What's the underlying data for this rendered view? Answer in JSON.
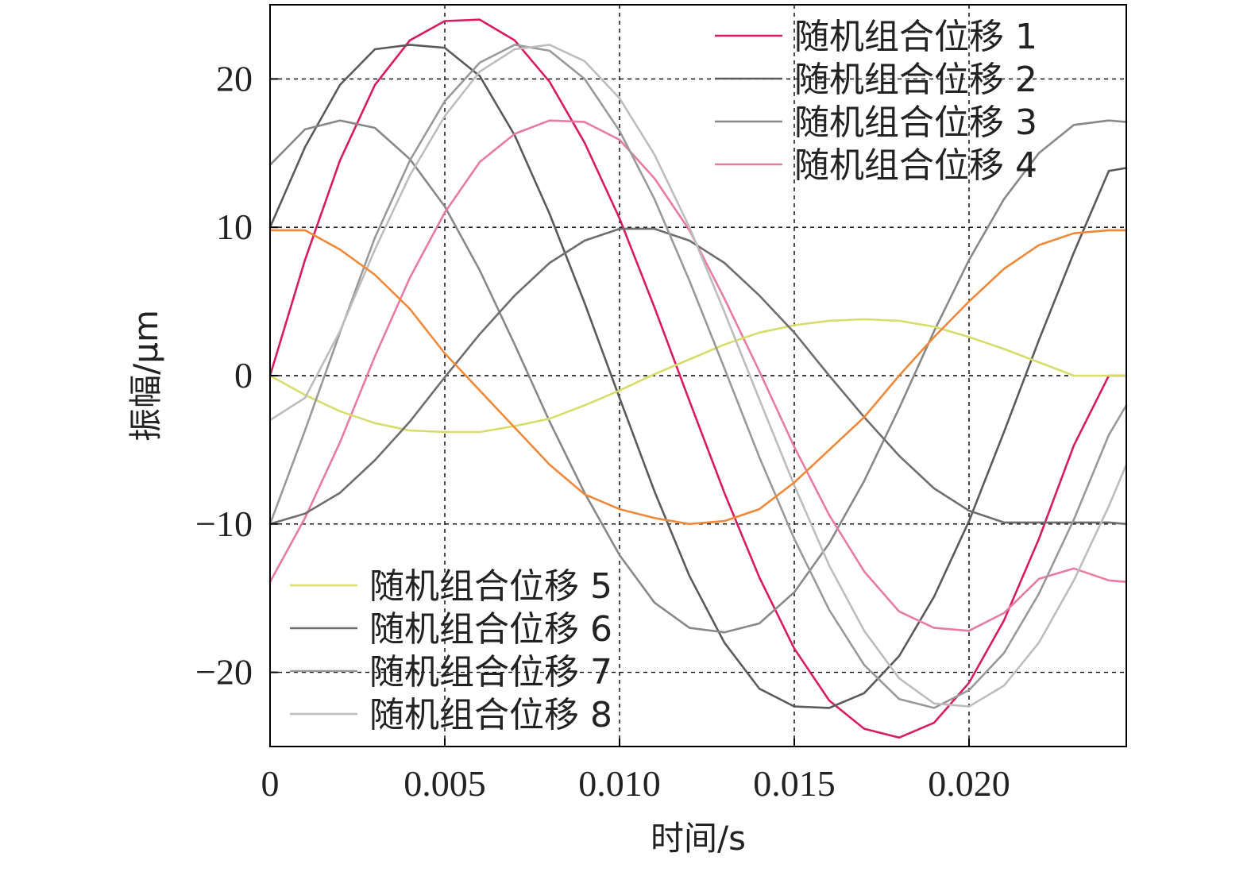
{
  "chart_data": {
    "type": "line",
    "xlabel": "时间/s",
    "ylabel": "振幅/μm",
    "xlim": [
      0,
      0.0245
    ],
    "ylim": [
      -25,
      25
    ],
    "xticks": [
      0,
      0.005,
      0.01,
      0.015,
      0.02
    ],
    "xtick_labels": [
      "0",
      "0.005",
      "0.010",
      "0.015",
      "0.020"
    ],
    "yticks": [
      -20,
      -10,
      0,
      10,
      20
    ],
    "ytick_labels": [
      "−20",
      "−10",
      "0",
      "10",
      "20"
    ],
    "grid": true,
    "legends": [
      {
        "placement": "top-right",
        "series": [
          0,
          1,
          2,
          3
        ]
      },
      {
        "placement": "bottom-left",
        "series": [
          4,
          5,
          6,
          7
        ]
      }
    ],
    "x": [
      0,
      0.001,
      0.002,
      0.003,
      0.004,
      0.005,
      0.006,
      0.007,
      0.008,
      0.009,
      0.01,
      0.011,
      0.012,
      0.013,
      0.014,
      0.015,
      0.016,
      0.017,
      0.018,
      0.019,
      0.02,
      0.021,
      0.022,
      0.023,
      0.024,
      0.0245
    ],
    "series": [
      {
        "name": "随机组合位移 1",
        "color": "#d81b60",
        "values": [
          0,
          7.8,
          14.5,
          19.6,
          22.6,
          23.9,
          24.0,
          22.6,
          19.8,
          15.7,
          10.6,
          4.6,
          -1.7,
          -7.9,
          -13.6,
          -18.4,
          -21.9,
          -23.8,
          -24.4,
          -23.4,
          -20.7,
          -16.5,
          -11.0,
          -4.7,
          0.0,
          0.0
        ]
      },
      {
        "name": "随机组合位移 2",
        "color": "#5a5a5a",
        "values": [
          10.0,
          15.4,
          19.6,
          22.0,
          22.3,
          22.1,
          20.2,
          16.2,
          10.9,
          4.9,
          -1.5,
          -7.8,
          -13.5,
          -18.0,
          -21.1,
          -22.3,
          -22.4,
          -21.4,
          -18.9,
          -14.9,
          -9.8,
          -3.8,
          2.4,
          8.3,
          13.8,
          14.0
        ]
      },
      {
        "name": "随机组合位移 3",
        "color": "#888888",
        "values": [
          14.2,
          16.6,
          17.2,
          16.7,
          14.6,
          11.4,
          7.1,
          2.1,
          -3.1,
          -7.9,
          -12.1,
          -15.3,
          -17.0,
          -17.3,
          -16.7,
          -14.6,
          -11.3,
          -7.1,
          -2.2,
          3.0,
          7.8,
          11.9,
          15.0,
          16.9,
          17.2,
          17.1
        ]
      },
      {
        "name": "随机组合位移 4",
        "color": "#e87aa3",
        "values": [
          -13.9,
          -9.6,
          -4.5,
          1.3,
          6.6,
          11.0,
          14.4,
          16.3,
          17.2,
          17.1,
          15.9,
          13.3,
          9.8,
          5.2,
          0.3,
          -4.8,
          -9.4,
          -13.2,
          -15.9,
          -17.0,
          -17.2,
          -16.0,
          -13.7,
          -13.0,
          -13.8,
          -13.9
        ]
      },
      {
        "name": "随机组合位移 5",
        "color": "#d8dc6a",
        "values": [
          0,
          -1.3,
          -2.4,
          -3.2,
          -3.7,
          -3.8,
          -3.8,
          -3.4,
          -2.9,
          -2.0,
          -1.0,
          0.1,
          1.1,
          2.1,
          2.9,
          3.4,
          3.7,
          3.8,
          3.7,
          3.3,
          2.6,
          1.8,
          0.9,
          0.0,
          0.0,
          0.0
        ]
      },
      {
        "name": "随机组合位移 6",
        "color": "#6e6e6e",
        "values": [
          -10.0,
          -9.3,
          -7.9,
          -5.7,
          -3.1,
          -0.1,
          2.8,
          5.4,
          7.6,
          9.1,
          9.9,
          9.9,
          9.1,
          7.6,
          5.4,
          2.9,
          0.0,
          -2.8,
          -5.4,
          -7.6,
          -9.1,
          -9.9,
          -9.9,
          -9.9,
          -9.9,
          -10.0
        ]
      },
      {
        "name": "随机组合位移 7",
        "color": "#999999",
        "values": [
          -10.0,
          -3.7,
          2.9,
          9.3,
          14.5,
          18.5,
          21.1,
          22.3,
          21.9,
          20.0,
          16.5,
          11.9,
          6.4,
          0.5,
          -5.5,
          -11.0,
          -15.8,
          -19.5,
          -21.8,
          -22.4,
          -21.2,
          -18.7,
          -14.7,
          -9.7,
          -4.0,
          -2.0
        ]
      },
      {
        "name": "随机组合位移 8",
        "color": "#bdbdbd",
        "values": [
          -3.0,
          -1.5,
          3.0,
          8.5,
          13.5,
          17.5,
          20.5,
          22.0,
          22.3,
          21.2,
          18.7,
          14.9,
          10.0,
          4.3,
          -1.6,
          -7.4,
          -12.8,
          -17.2,
          -20.4,
          -22.1,
          -22.3,
          -20.9,
          -18.0,
          -13.8,
          -8.8,
          -6.0
        ]
      }
    ],
    "overlay": {
      "name": "",
      "color": "#f0883a",
      "values": [
        9.8,
        9.8,
        8.5,
        6.8,
        4.5,
        1.5,
        -1.0,
        -3.5,
        -6.0,
        -8.0,
        -9.0,
        -9.6,
        -10.0,
        -9.8,
        -9.0,
        -7.2,
        -5.0,
        -2.8,
        0.0,
        2.6,
        5.0,
        7.2,
        8.8,
        9.6,
        9.8,
        9.8
      ]
    }
  }
}
